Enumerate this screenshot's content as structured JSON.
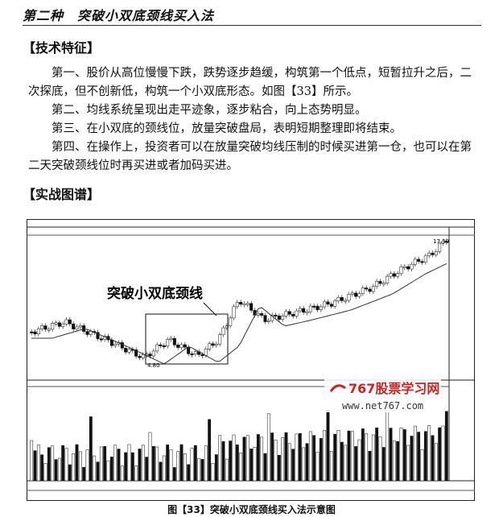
{
  "header": {
    "title": "第二种　突破小双底颈线买入法"
  },
  "sections": [
    {
      "heading": "【技术特征】",
      "paragraphs": [
        "第一、股价从高位慢慢下跌，跌势逐步趋缓，构筑第一个低点，短暂拉升之后，二次探底，但不创新低，构筑一个小双底形态。如图【33】所示。",
        "第二、均线系统呈现出走平迹象，逐步粘合，向上态势明显。",
        "第三、在小双底的颈线位，放量突破盘局，表明短期整理即将结束。",
        "第四、在操作上，投资者可以在放量突破均线压制的时候买进第一仓，也可以在第二天突破颈线位时再买进或者加码买进。"
      ]
    },
    {
      "heading": "【实战图谱】"
    }
  ],
  "figure": {
    "annotation": "突破小双底颈线",
    "high_label": "17.30",
    "low_label": "4.80",
    "watermark": "767股票学习网",
    "watermark_url": "www.net767.com",
    "caption": "图【33】突破小双底颈线买入法示意图"
  }
}
